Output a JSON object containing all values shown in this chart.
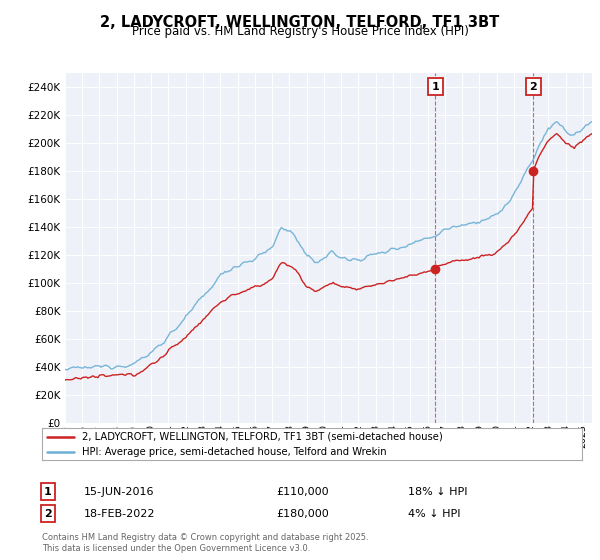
{
  "title": "2, LADYCROFT, WELLINGTON, TELFORD, TF1 3BT",
  "subtitle": "Price paid vs. HM Land Registry's House Price Index (HPI)",
  "legend_line1": "2, LADYCROFT, WELLINGTON, TELFORD, TF1 3BT (semi-detached house)",
  "legend_line2": "HPI: Average price, semi-detached house, Telford and Wrekin",
  "sale1_date": "15-JUN-2016",
  "sale1_price": 110000,
  "sale1_label": "18% ↓ HPI",
  "sale1_t": 2016.46,
  "sale2_date": "18-FEB-2022",
  "sale2_price": 180000,
  "sale2_label": "4% ↓ HPI",
  "sale2_t": 2022.12,
  "footer": "Contains HM Land Registry data © Crown copyright and database right 2025.\nThis data is licensed under the Open Government Licence v3.0.",
  "hpi_color": "#6baed6",
  "price_color": "#cc2222",
  "bg_chart": "#eef2f8",
  "background_color": "#ffffff",
  "ylim": [
    0,
    250000
  ],
  "xlim": [
    1995,
    2025.5
  ]
}
